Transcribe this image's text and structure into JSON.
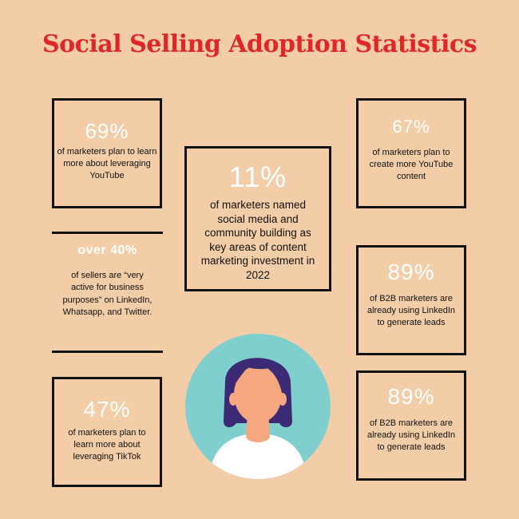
{
  "title": "Social Selling Adoption Statistics",
  "cards": {
    "youtube_learn": {
      "stat": "69%",
      "desc": "of marketers plan to learn more about leveraging YouTube"
    },
    "youtube_content": {
      "stat": "67%",
      "desc": "of marketers  plan to create more YouTube content"
    },
    "social_media": {
      "stat": "11%",
      "desc": "of marketers named social media and community building as key areas of content marketing investment in 2022"
    },
    "sellers": {
      "stat": "over 40%",
      "desc": "of sellers are “very active for business purposes” on LinkedIn, Whatsapp, and Twitter."
    },
    "linkedin_1": {
      "stat": "89%",
      "desc": "of B2B marketers are already using LinkedIn to generate leads"
    },
    "linkedin_2": {
      "stat": "89%",
      "desc": "of B2B marketers are already using LinkedIn to generate leads"
    },
    "tiktok": {
      "stat": "47%",
      "desc": "of marketers plan to learn more about leveraging TikTok"
    }
  },
  "colors": {
    "background": "#f2cda7",
    "title": "#e02626",
    "stat": "#ffffff",
    "border": "#111111",
    "avatar_circle": "#7ecfcd",
    "hair": "#3d2a75",
    "skin": "#f5a77f",
    "shirt": "#ffffff"
  },
  "illustration": "woman-avatar-icon"
}
